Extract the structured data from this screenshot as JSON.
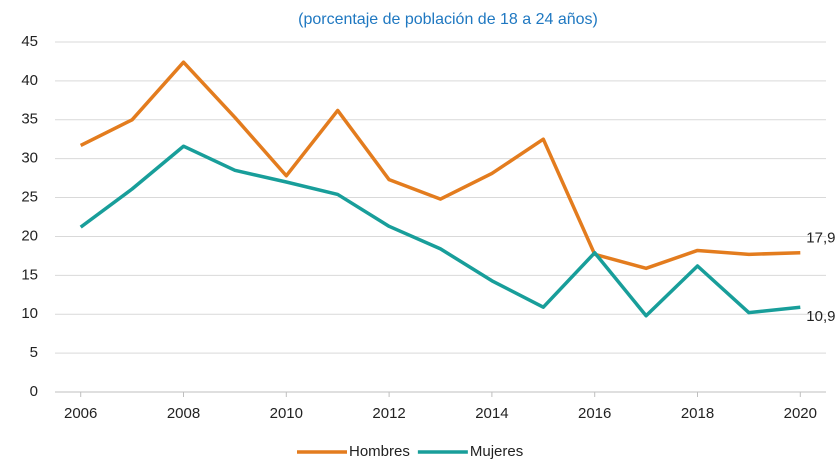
{
  "chart_data": {
    "type": "line",
    "subtitle": "(porcentaje de población de 18 a 24 años)",
    "x": [
      2006,
      2007,
      2008,
      2009,
      2010,
      2011,
      2012,
      2013,
      2014,
      2015,
      2016,
      2017,
      2018,
      2019,
      2020
    ],
    "series": [
      {
        "name": "Hombres",
        "color": "#e37c1e",
        "values": [
          31.7,
          35.0,
          42.4,
          35.3,
          27.8,
          36.2,
          27.3,
          24.8,
          28.1,
          32.5,
          17.7,
          15.9,
          18.2,
          17.7,
          17.9
        ],
        "value_labels": [
          null,
          null,
          null,
          null,
          null,
          null,
          null,
          null,
          null,
          null,
          null,
          null,
          null,
          null,
          "17,9"
        ]
      },
      {
        "name": "Mujeres",
        "color": "#189e9a",
        "values": [
          21.2,
          26.1,
          31.6,
          28.5,
          27.0,
          25.4,
          21.3,
          18.4,
          14.3,
          10.9,
          17.9,
          9.8,
          16.2,
          10.2,
          10.9
        ],
        "value_labels": [
          null,
          null,
          null,
          null,
          null,
          null,
          null,
          null,
          null,
          null,
          null,
          null,
          null,
          null,
          "10,9"
        ]
      }
    ],
    "xlim": [
      2005.5,
      2020.5
    ],
    "xticks": [
      2006,
      2008,
      2010,
      2012,
      2014,
      2016,
      2018,
      2020
    ],
    "ylim": [
      0,
      45
    ],
    "yticks": [
      0,
      5,
      10,
      15,
      20,
      25,
      30,
      35,
      40,
      45
    ],
    "grid": true,
    "legend": "bottom"
  }
}
